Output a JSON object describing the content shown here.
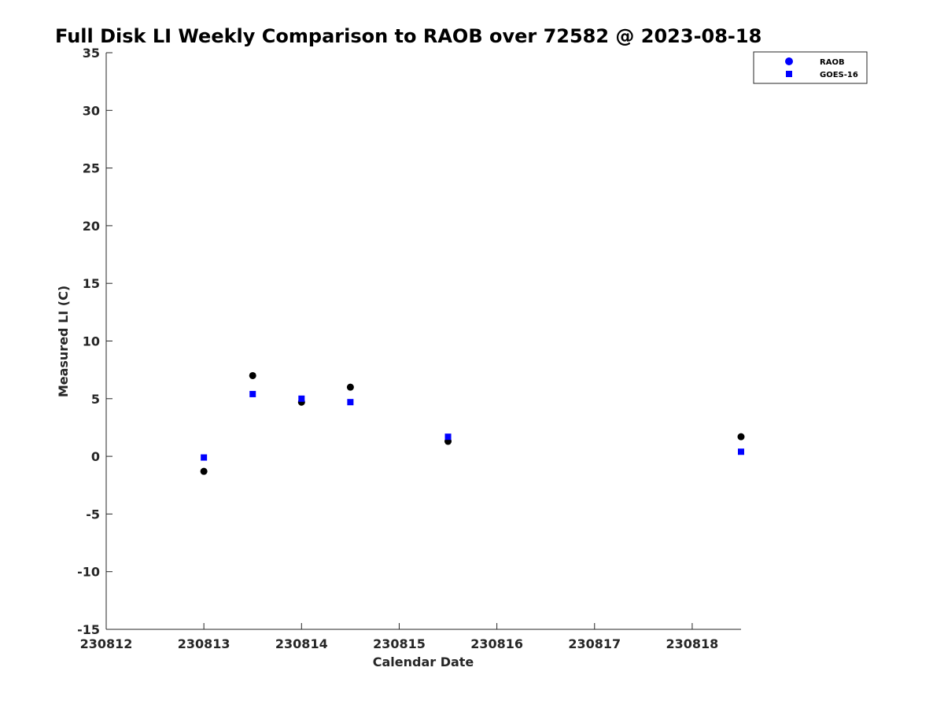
{
  "chart_data": {
    "type": "scatter",
    "title": "Full Disk LI Weekly Comparison to RAOB over 72582 @ 2023-08-18",
    "xlabel": "Calendar Date",
    "ylabel": "Measured LI (C)",
    "xlim": [
      0,
      6.5
    ],
    "ylim": [
      -15,
      35
    ],
    "x_ticks": [
      {
        "value": 0,
        "label": "230812"
      },
      {
        "value": 1,
        "label": "230813"
      },
      {
        "value": 2,
        "label": "230814"
      },
      {
        "value": 3,
        "label": "230815"
      },
      {
        "value": 4,
        "label": "230816"
      },
      {
        "value": 5,
        "label": "230817"
      },
      {
        "value": 6,
        "label": "230818"
      }
    ],
    "y_ticks": [
      {
        "value": 35,
        "label": "35"
      },
      {
        "value": 30,
        "label": "30"
      },
      {
        "value": 25,
        "label": "25"
      },
      {
        "value": 20,
        "label": "20"
      },
      {
        "value": 15,
        "label": "15"
      },
      {
        "value": 10,
        "label": "10"
      },
      {
        "value": 5,
        "label": "5"
      },
      {
        "value": 0,
        "label": "0"
      },
      {
        "value": -5,
        "label": "-5"
      },
      {
        "value": -10,
        "label": "-10"
      },
      {
        "value": -15,
        "label": "-15"
      }
    ],
    "grid": false,
    "legend_position": "top-right",
    "series": [
      {
        "name": "RAOB",
        "marker": "circle",
        "color": "#000000",
        "legend_color": "#0000ff",
        "x": [
          1.0,
          1.5,
          2.0,
          2.5,
          3.5,
          6.5
        ],
        "y": [
          -1.3,
          7.0,
          4.7,
          6.0,
          1.3,
          1.7
        ]
      },
      {
        "name": "GOES-16",
        "marker": "square",
        "color": "#0000ff",
        "legend_color": "#0000ff",
        "x": [
          1.0,
          1.5,
          2.0,
          2.5,
          3.5,
          6.5
        ],
        "y": [
          -0.1,
          5.4,
          5.0,
          4.7,
          1.7,
          0.4
        ]
      }
    ]
  }
}
